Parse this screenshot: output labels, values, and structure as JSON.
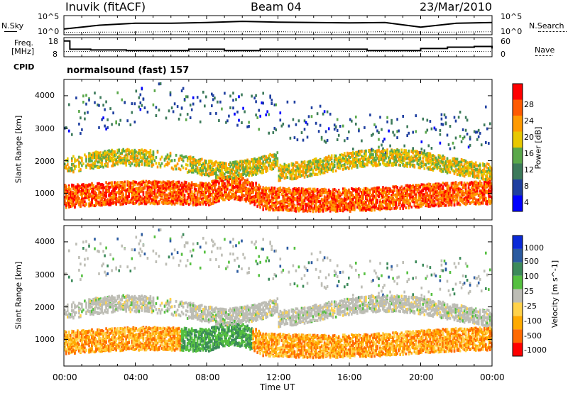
{
  "header": {
    "station": "Inuvik (fitACF)",
    "beam": "Beam 04",
    "date": "23/Mar/2010"
  },
  "panels": {
    "nsky_label": "N.Sky",
    "nsearch_label": "N.Search",
    "nsky_ticks": [
      "10^5",
      "10^0"
    ],
    "nsearch_ticks": [
      "10^5",
      "10^0"
    ],
    "freq_label_1": "Freq.",
    "freq_label_2": "[MHz]",
    "freq_ticks": [
      "18",
      "8"
    ],
    "nave_label": "Nave",
    "nave_ticks": [
      "60",
      "0"
    ],
    "cpid_label": "CPID",
    "cpid_text": "normalsound (fast) 157"
  },
  "colors": {
    "power_scale": [
      "#0000ff",
      "#1f3fa0",
      "#3c7a5a",
      "#5aa84a",
      "#e8c800",
      "#ff9a00",
      "#ff5a00",
      "#ff0000"
    ],
    "velocity_scale": [
      "#ff0000",
      "#ff6a00",
      "#ffaa00",
      "#ffd24a",
      "#bdbdb5",
      "#55c040",
      "#3c8a5a",
      "#2a5aa0",
      "#0a2ad8"
    ]
  },
  "chart_data": [
    {
      "type": "line",
      "name": "nsky-nsearch",
      "x": [
        "00:00",
        "02:00",
        "04:00",
        "06:00",
        "08:00",
        "10:00",
        "12:00",
        "14:00",
        "16:00",
        "18:00",
        "20:00",
        "22:00",
        "00:00"
      ],
      "series": [
        {
          "name": "N.Sky",
          "values": [
            1.5,
            2.5,
            3,
            3,
            3.2,
            3.5,
            3.3,
            3.2,
            3.1,
            3.2,
            2.0,
            3.0,
            3.2
          ]
        },
        {
          "name": "N.Search",
          "values": [
            0.6,
            0.7,
            0.7,
            0.8,
            0.8,
            0.8,
            0.8,
            0.7,
            0.7,
            0.8,
            0.7,
            0.7,
            0.8
          ]
        }
      ]
    },
    {
      "type": "line",
      "name": "freq-nave",
      "x": [
        "00:00",
        "00:20",
        "01:30",
        "03:30",
        "05:10",
        "07:00",
        "09:00",
        "11:00",
        "14:00",
        "17:00",
        "20:00",
        "21:30",
        "23:00",
        "00:00"
      ],
      "series": [
        {
          "name": "Freq.",
          "values": [
            17.5,
            11.5,
            11,
            10.5,
            10.5,
            11.5,
            10.5,
            11.5,
            11.5,
            10.5,
            12,
            13,
            13.5,
            12
          ]
        },
        {
          "name": "Nave",
          "values": [
            18,
            18,
            18,
            18,
            18,
            18,
            18,
            18,
            18,
            18,
            18,
            18,
            18,
            18
          ]
        }
      ]
    },
    {
      "type": "heatmap",
      "name": "power",
      "ylabel": "Slant Range [km]",
      "yticks": [
        "4000",
        "3000",
        "2000",
        "1000"
      ],
      "ylim": [
        180,
        4500
      ],
      "colorbar_label": "Power [dB]",
      "colorbar_ticks": [
        "28",
        "24",
        "20",
        "16",
        "12",
        "8",
        "4"
      ],
      "colorbar_range": [
        0,
        32
      ]
    },
    {
      "type": "heatmap",
      "name": "velocity",
      "ylabel": "Slant Range [km]",
      "yticks": [
        "4000",
        "3000",
        "2000",
        "1000"
      ],
      "ylim": [
        180,
        4500
      ],
      "colorbar_label": "Velocity [m s^-1]",
      "colorbar_ticks": [
        "1000",
        "500",
        "100",
        "25",
        "-25",
        "-100",
        "-500",
        "-1000"
      ]
    }
  ],
  "xaxis": {
    "label": "Time UT",
    "ticks": [
      "00:00",
      "04:00",
      "08:00",
      "12:00",
      "16:00",
      "20:00",
      "00:00"
    ],
    "range_hours": [
      0,
      24
    ]
  }
}
